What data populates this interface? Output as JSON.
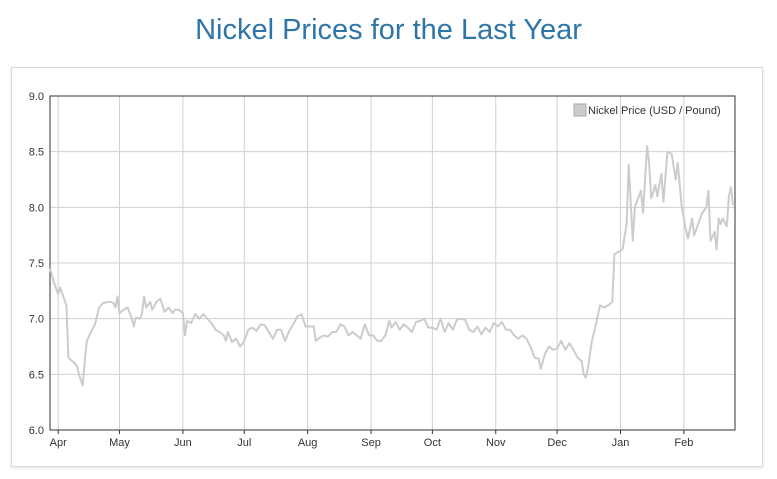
{
  "chart_data": {
    "type": "line",
    "title": "Nickel Prices for the Last Year",
    "xlabel": "",
    "ylabel": "",
    "ylim": [
      6.0,
      9.0
    ],
    "yticks": [
      "6.0",
      "6.5",
      "7.0",
      "7.5",
      "8.0",
      "8.5",
      "9.0"
    ],
    "xticks": [
      "Apr",
      "May",
      "Jun",
      "Jul",
      "Aug",
      "Sep",
      "Oct",
      "Nov",
      "Dec",
      "Jan",
      "Feb"
    ],
    "grid": true,
    "legend": "top-right",
    "colors": {
      "line": "#cccccc",
      "title": "#2e75a8",
      "grid": "#d0d0d0",
      "axis": "#333333"
    },
    "series": [
      {
        "name": "Nickel Price (USD / Pound)",
        "points": [
          [
            "03-28",
            7.45
          ],
          [
            "03-30",
            7.32
          ],
          [
            "04-01",
            7.22
          ],
          [
            "04-02",
            7.28
          ],
          [
            "04-05",
            7.12
          ],
          [
            "04-06",
            6.65
          ],
          [
            "04-09",
            6.6
          ],
          [
            "04-10",
            6.58
          ],
          [
            "04-12",
            6.45
          ],
          [
            "04-13",
            6.4
          ],
          [
            "04-14",
            6.62
          ],
          [
            "04-15",
            6.8
          ],
          [
            "04-17",
            6.88
          ],
          [
            "04-19",
            6.95
          ],
          [
            "04-21",
            7.1
          ],
          [
            "04-23",
            7.14
          ],
          [
            "04-25",
            7.15
          ],
          [
            "04-27",
            7.15
          ],
          [
            "04-28",
            7.14
          ],
          [
            "04-29",
            7.1
          ],
          [
            "04-30",
            7.2
          ],
          [
            "05-01",
            7.05
          ],
          [
            "05-03",
            7.08
          ],
          [
            "05-05",
            7.1
          ],
          [
            "05-07",
            7.0
          ],
          [
            "05-08",
            6.93
          ],
          [
            "05-09",
            7.01
          ],
          [
            "05-11",
            7.0
          ],
          [
            "05-12",
            7.05
          ],
          [
            "05-13",
            7.2
          ],
          [
            "05-14",
            7.1
          ],
          [
            "05-16",
            7.15
          ],
          [
            "05-17",
            7.08
          ],
          [
            "05-19",
            7.15
          ],
          [
            "05-21",
            7.18
          ],
          [
            "05-23",
            7.06
          ],
          [
            "05-25",
            7.1
          ],
          [
            "05-27",
            7.05
          ],
          [
            "05-28",
            7.08
          ],
          [
            "05-30",
            7.08
          ],
          [
            "06-01",
            7.05
          ],
          [
            "06-02",
            6.85
          ],
          [
            "06-03",
            6.98
          ],
          [
            "06-05",
            6.96
          ],
          [
            "06-07",
            7.04
          ],
          [
            "06-09",
            7.0
          ],
          [
            "06-11",
            7.04
          ],
          [
            "06-13",
            7.0
          ],
          [
            "06-15",
            6.96
          ],
          [
            "06-17",
            6.9
          ],
          [
            "06-19",
            6.88
          ],
          [
            "06-21",
            6.85
          ],
          [
            "06-22",
            6.8
          ],
          [
            "06-23",
            6.88
          ],
          [
            "06-25",
            6.79
          ],
          [
            "06-27",
            6.82
          ],
          [
            "06-29",
            6.75
          ],
          [
            "07-01",
            6.8
          ],
          [
            "07-03",
            6.9
          ],
          [
            "07-05",
            6.92
          ],
          [
            "07-07",
            6.89
          ],
          [
            "07-09",
            6.95
          ],
          [
            "07-11",
            6.94
          ],
          [
            "07-13",
            6.88
          ],
          [
            "07-15",
            6.82
          ],
          [
            "07-17",
            6.9
          ],
          [
            "07-19",
            6.9
          ],
          [
            "07-21",
            6.8
          ],
          [
            "07-23",
            6.89
          ],
          [
            "07-25",
            6.95
          ],
          [
            "07-27",
            7.02
          ],
          [
            "07-29",
            7.04
          ],
          [
            "07-31",
            6.93
          ],
          [
            "08-02",
            6.93
          ],
          [
            "08-04",
            6.93
          ],
          [
            "08-05",
            6.8
          ],
          [
            "08-07",
            6.83
          ],
          [
            "08-09",
            6.85
          ],
          [
            "08-11",
            6.84
          ],
          [
            "08-13",
            6.88
          ],
          [
            "08-15",
            6.88
          ],
          [
            "08-17",
            6.95
          ],
          [
            "08-19",
            6.93
          ],
          [
            "08-21",
            6.85
          ],
          [
            "08-23",
            6.88
          ],
          [
            "08-25",
            6.85
          ],
          [
            "08-27",
            6.82
          ],
          [
            "08-29",
            6.95
          ],
          [
            "08-31",
            6.85
          ],
          [
            "09-02",
            6.85
          ],
          [
            "09-04",
            6.8
          ],
          [
            "09-06",
            6.8
          ],
          [
            "09-08",
            6.85
          ],
          [
            "09-10",
            6.98
          ],
          [
            "09-11",
            6.92
          ],
          [
            "09-13",
            6.97
          ],
          [
            "09-15",
            6.9
          ],
          [
            "09-17",
            6.95
          ],
          [
            "09-19",
            6.92
          ],
          [
            "09-21",
            6.88
          ],
          [
            "09-23",
            6.97
          ],
          [
            "09-25",
            6.98
          ],
          [
            "09-27",
            7.0
          ],
          [
            "09-29",
            6.92
          ],
          [
            "10-01",
            6.92
          ],
          [
            "10-03",
            6.9
          ],
          [
            "10-05",
            7.0
          ],
          [
            "10-07",
            6.88
          ],
          [
            "10-09",
            6.96
          ],
          [
            "10-11",
            6.9
          ],
          [
            "10-13",
            6.99
          ],
          [
            "10-15",
            7.0
          ],
          [
            "10-17",
            6.99
          ],
          [
            "10-19",
            6.9
          ],
          [
            "10-21",
            6.88
          ],
          [
            "10-23",
            6.93
          ],
          [
            "10-25",
            6.86
          ],
          [
            "10-27",
            6.92
          ],
          [
            "10-29",
            6.88
          ],
          [
            "10-31",
            6.96
          ],
          [
            "11-02",
            6.93
          ],
          [
            "11-04",
            6.97
          ],
          [
            "11-06",
            6.9
          ],
          [
            "11-08",
            6.9
          ],
          [
            "11-10",
            6.85
          ],
          [
            "11-12",
            6.82
          ],
          [
            "11-14",
            6.85
          ],
          [
            "11-16",
            6.82
          ],
          [
            "11-18",
            6.75
          ],
          [
            "11-20",
            6.65
          ],
          [
            "11-22",
            6.64
          ],
          [
            "11-23",
            6.55
          ],
          [
            "11-25",
            6.68
          ],
          [
            "11-27",
            6.75
          ],
          [
            "11-29",
            6.72
          ],
          [
            "12-01",
            6.73
          ],
          [
            "12-03",
            6.8
          ],
          [
            "12-05",
            6.72
          ],
          [
            "12-07",
            6.78
          ],
          [
            "12-09",
            6.72
          ],
          [
            "12-11",
            6.65
          ],
          [
            "12-13",
            6.62
          ],
          [
            "12-14",
            6.5
          ],
          [
            "12-15",
            6.47
          ],
          [
            "12-16",
            6.55
          ],
          [
            "12-18",
            6.8
          ],
          [
            "12-20",
            6.95
          ],
          [
            "12-22",
            7.12
          ],
          [
            "12-24",
            7.1
          ],
          [
            "12-26",
            7.12
          ],
          [
            "12-28",
            7.15
          ],
          [
            "12-29",
            7.58
          ],
          [
            "12-31",
            7.6
          ],
          [
            "01-02",
            7.62
          ],
          [
            "01-04",
            7.85
          ],
          [
            "01-05",
            8.38
          ],
          [
            "01-07",
            7.7
          ],
          [
            "01-08",
            8.0
          ],
          [
            "01-10",
            8.1
          ],
          [
            "01-11",
            8.15
          ],
          [
            "01-12",
            7.95
          ],
          [
            "01-14",
            8.55
          ],
          [
            "01-15",
            8.4
          ],
          [
            "01-16",
            8.08
          ],
          [
            "01-18",
            8.2
          ],
          [
            "01-19",
            8.1
          ],
          [
            "01-21",
            8.3
          ],
          [
            "01-22",
            8.05
          ],
          [
            "01-24",
            8.5
          ],
          [
            "01-26",
            8.48
          ],
          [
            "01-28",
            8.25
          ],
          [
            "01-29",
            8.4
          ],
          [
            "01-31",
            8.0
          ],
          [
            "02-02",
            7.8
          ],
          [
            "02-03",
            7.72
          ],
          [
            "02-05",
            7.9
          ],
          [
            "02-06",
            7.75
          ],
          [
            "02-08",
            7.85
          ],
          [
            "02-10",
            7.95
          ],
          [
            "02-12",
            8.0
          ],
          [
            "02-13",
            8.15
          ],
          [
            "02-14",
            7.7
          ],
          [
            "02-16",
            7.78
          ],
          [
            "02-17",
            7.62
          ],
          [
            "02-18",
            7.9
          ],
          [
            "02-19",
            7.85
          ],
          [
            "02-20",
            7.9
          ],
          [
            "02-22",
            7.83
          ],
          [
            "02-23",
            8.1
          ],
          [
            "02-24",
            8.18
          ],
          [
            "02-25",
            8.02
          ]
        ]
      }
    ]
  }
}
